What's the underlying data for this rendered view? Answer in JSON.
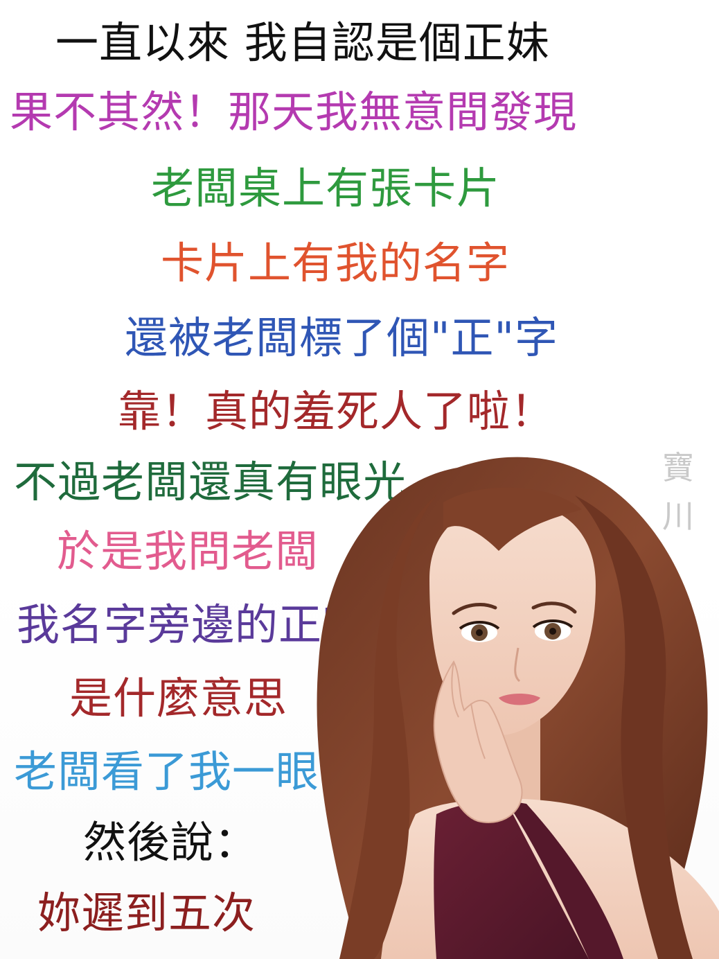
{
  "lines": [
    {
      "text": "一直以來 我自認是個正妹",
      "color": "#111111"
    },
    {
      "text": "果不其然！那天我無意間發現",
      "color": "#b43ab0"
    },
    {
      "text": "老闆桌上有張卡片",
      "color": "#2e9a3e"
    },
    {
      "text": "卡片上有我的名字",
      "color": "#e0532e"
    },
    {
      "text": "還被老闆標了個\"正\"字",
      "color": "#2f56b5"
    },
    {
      "text": "靠！真的羞死人了啦！",
      "color": "#a3282a"
    },
    {
      "text": "不過老闆還真有眼光",
      "color": "#1f6b3c"
    },
    {
      "text": "於是我問老闆",
      "color": "#e25b8e"
    },
    {
      "text": "我名字旁邊的正字",
      "color": "#5a3a9a"
    },
    {
      "text": "是什麼意思",
      "color": "#a3282a"
    },
    {
      "text": "老闆看了我一眼",
      "color": "#3b9ad6"
    },
    {
      "text": "然後說：",
      "color": "#111111"
    },
    {
      "text": "妳遲到五次",
      "color": "#8c1f1f"
    }
  ],
  "watermark": {
    "char1": "寶",
    "char2": "川",
    "color": "#c9c9c9"
  },
  "illustration": {
    "subject": "anime-style woman with long brown hair, hand under chin, maroon top"
  }
}
